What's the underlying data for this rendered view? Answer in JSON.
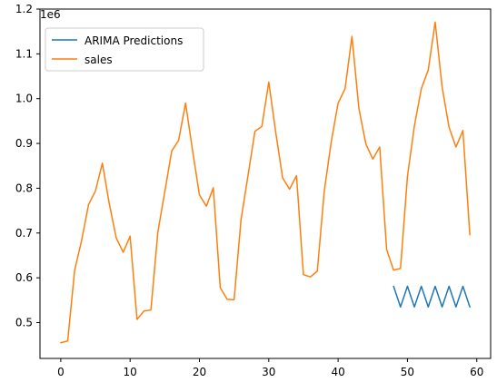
{
  "chart_data": {
    "type": "line",
    "title": "",
    "xlabel": "",
    "ylabel": "",
    "offset_label": "1e6",
    "xlim": [
      -3,
      62
    ],
    "ylim": [
      420000,
      1200000
    ],
    "xticks": [
      0,
      10,
      20,
      30,
      40,
      50,
      60
    ],
    "xtick_labels": [
      "0",
      "10",
      "20",
      "30",
      "40",
      "50",
      "60"
    ],
    "yticks": [
      500000,
      600000,
      700000,
      800000,
      900000,
      1000000,
      1100000,
      1200000
    ],
    "ytick_labels": [
      "0.5",
      "0.6",
      "0.7",
      "0.8",
      "0.9",
      "1.0",
      "1.1",
      "1.2"
    ],
    "grid": false,
    "legend_position": "top-left",
    "series": [
      {
        "name": "ARIMA Predictions",
        "color": "#1f77b4",
        "x": [
          48,
          49,
          50,
          51,
          52,
          53,
          54,
          55,
          56,
          57,
          58,
          59
        ],
        "values": [
          581000,
          535000,
          581000,
          535000,
          581000,
          535000,
          581000,
          535000,
          581000,
          535000,
          581000,
          535000
        ]
      },
      {
        "name": "sales",
        "color": "#ff7f0e",
        "x": [
          0,
          1,
          2,
          3,
          4,
          5,
          6,
          7,
          8,
          9,
          10,
          11,
          12,
          13,
          14,
          15,
          16,
          17,
          18,
          19,
          20,
          21,
          22,
          23,
          24,
          25,
          26,
          27,
          28,
          29,
          30,
          31,
          32,
          33,
          34,
          35,
          36,
          37,
          38,
          39,
          40,
          41,
          42,
          43,
          44,
          45,
          46,
          47,
          48,
          49,
          50,
          51,
          52,
          53,
          54,
          55,
          56,
          57,
          58,
          59
        ],
        "values": [
          455000,
          459000,
          617000,
          683000,
          763000,
          794000,
          856000,
          765000,
          689000,
          657000,
          693000,
          507000,
          526000,
          528000,
          702000,
          792000,
          883000,
          907000,
          990000,
          885000,
          785000,
          760000,
          801000,
          578000,
          552000,
          551000,
          730000,
          828000,
          927000,
          938000,
          1037000,
          925000,
          823000,
          798000,
          828000,
          607000,
          602000,
          615000,
          793000,
          903000,
          990000,
          1022000,
          1139000,
          978000,
          899000,
          865000,
          892000,
          663000,
          617000,
          621000,
          826000,
          939000,
          1022000,
          1064000,
          1171000,
          1026000,
          936000,
          892000,
          929000,
          696000
        ]
      }
    ]
  }
}
